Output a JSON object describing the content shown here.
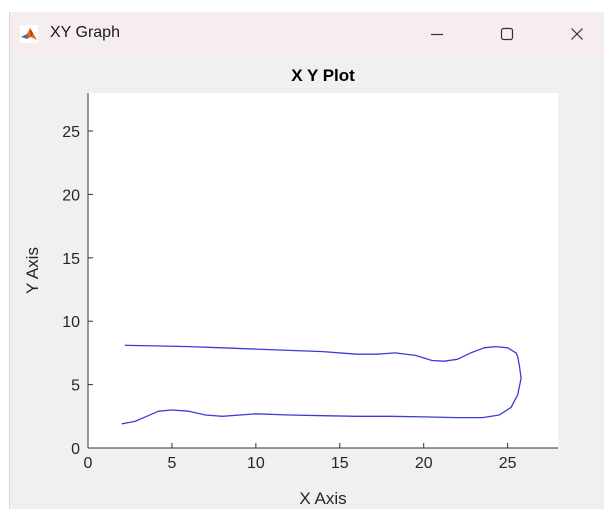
{
  "window": {
    "title": "XY Graph",
    "app_icon": "matlab-icon",
    "controls": {
      "minimize": "minimize-icon",
      "maximize": "maximize-icon",
      "close": "close-icon"
    }
  },
  "chart_data": {
    "type": "line",
    "title": "X Y Plot",
    "xlabel": "X Axis",
    "ylabel": "Y Axis",
    "xlim": [
      0,
      28
    ],
    "ylim": [
      0,
      28
    ],
    "xticks": [
      0,
      5,
      10,
      15,
      20,
      25
    ],
    "yticks": [
      0,
      5,
      10,
      15,
      20,
      25
    ],
    "grid": false,
    "line_color": "#3b3bd9",
    "series": [
      {
        "x": [
          2.0,
          2.8,
          3.5,
          4.2,
          5.0,
          6.0,
          7.0,
          8.0,
          10.0,
          12.0,
          14.0,
          16.0,
          18.0,
          20.0,
          22.0,
          23.5,
          24.5,
          25.2,
          25.6,
          25.8,
          25.7,
          25.6,
          25.5,
          25.0,
          24.3,
          23.6,
          22.8,
          22.0,
          21.2,
          20.5,
          19.5,
          18.3,
          17.2,
          16.0,
          14.0,
          12.0,
          10.0,
          8.0,
          6.0,
          4.0,
          2.2
        ],
        "y": [
          1.9,
          2.1,
          2.5,
          2.9,
          3.0,
          2.9,
          2.6,
          2.5,
          2.7,
          2.6,
          2.55,
          2.5,
          2.5,
          2.45,
          2.4,
          2.4,
          2.6,
          3.2,
          4.2,
          5.5,
          6.5,
          7.2,
          7.5,
          7.9,
          8.0,
          7.9,
          7.5,
          7.0,
          6.85,
          6.9,
          7.3,
          7.5,
          7.4,
          7.4,
          7.6,
          7.7,
          7.8,
          7.9,
          8.0,
          8.05,
          8.1
        ]
      }
    ]
  }
}
